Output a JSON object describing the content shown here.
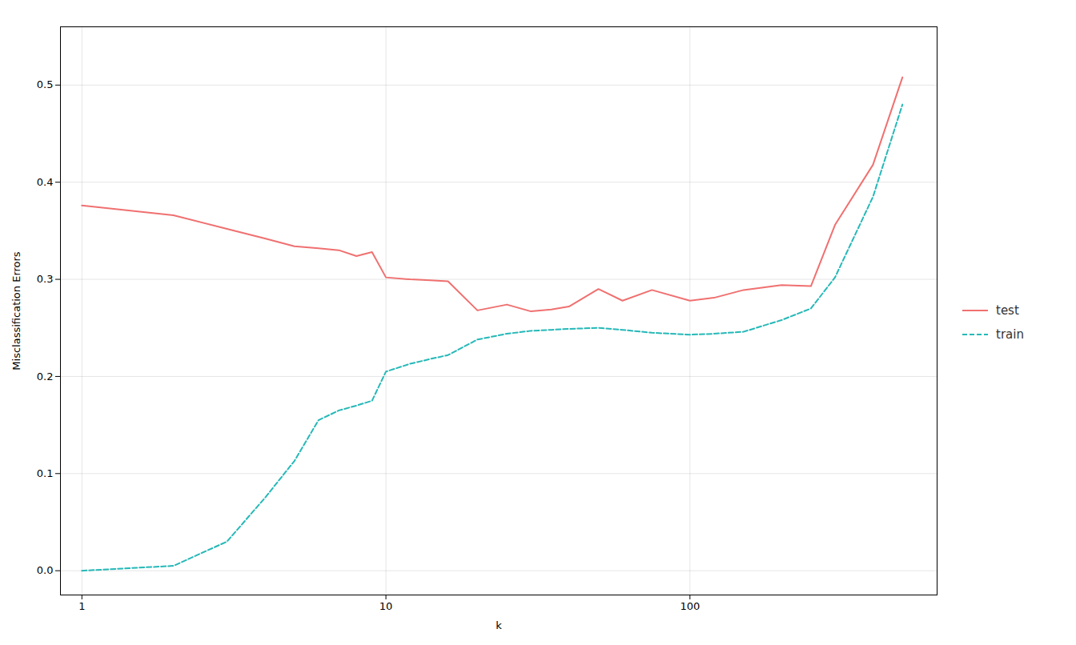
{
  "chart_data": {
    "type": "line",
    "xlabel": "k",
    "ylabel": "Misclassification Errors",
    "log": "x",
    "x": [
      1,
      2,
      3,
      4,
      5,
      6,
      7,
      8,
      9,
      10,
      12,
      14,
      16,
      20,
      25,
      30,
      35,
      40,
      50,
      60,
      75,
      100,
      120,
      150,
      200,
      250,
      300,
      400,
      500
    ],
    "series": [
      {
        "name": "test",
        "color": "#F07070",
        "line_style": "solid",
        "values": [
          0.376,
          0.366,
          0.352,
          0.342,
          0.334,
          0.332,
          0.33,
          0.324,
          0.328,
          0.302,
          0.3,
          0.299,
          0.298,
          0.268,
          0.274,
          0.267,
          0.269,
          0.272,
          0.29,
          0.278,
          0.289,
          0.278,
          0.281,
          0.289,
          0.294,
          0.293,
          0.356,
          0.418,
          0.508
        ]
      },
      {
        "name": "train",
        "color": "#26b8b8",
        "line_style": "dashed",
        "values": [
          0.0,
          0.005,
          0.03,
          0.075,
          0.113,
          0.155,
          0.165,
          0.17,
          0.175,
          0.205,
          0.213,
          0.218,
          0.222,
          0.238,
          0.244,
          0.247,
          0.248,
          0.249,
          0.25,
          0.248,
          0.245,
          0.243,
          0.244,
          0.246,
          0.258,
          0.27,
          0.302,
          0.385,
          0.48
        ]
      }
    ],
    "xlim": [
      0.85,
      650
    ],
    "xticks": [
      1,
      10,
      100
    ],
    "ylim": [
      -0.025,
      0.56
    ],
    "yticks": [
      {
        "value": 0.0,
        "label": "0.0"
      },
      0.1,
      0.2,
      0.3,
      0.4,
      0.5
    ],
    "grid": true,
    "legend": "right"
  }
}
